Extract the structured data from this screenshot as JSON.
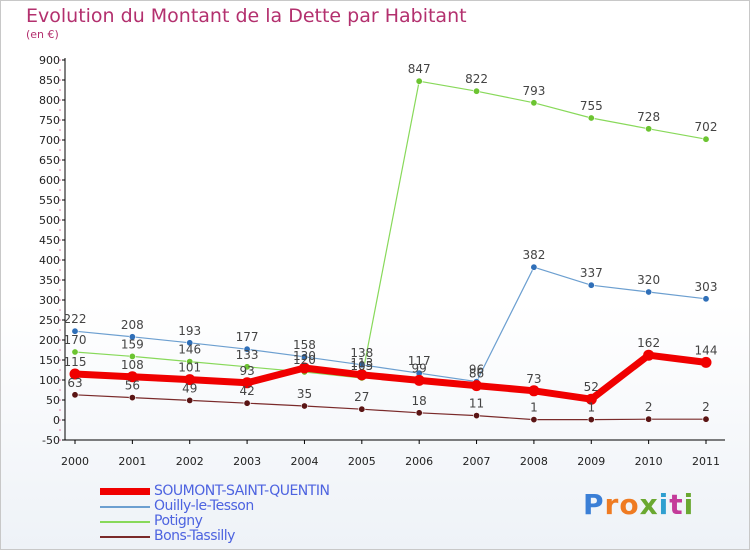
{
  "header": {
    "title": "Evolution du Montant de la Dette par Habitant",
    "subtitle": "(en €)"
  },
  "logo": {
    "letters": [
      "P",
      "r",
      "o",
      "x",
      "i",
      "t",
      "i"
    ],
    "colors": [
      "#3b7fd6",
      "#ef7b22",
      "#ef7b22",
      "#6aa831",
      "#2f9fd0",
      "#c43b9a",
      "#6aa831"
    ]
  },
  "chart_data": {
    "type": "line",
    "title": "Evolution du Montant de la Dette par Habitant",
    "ylabel": "(en €)",
    "xlabel": "",
    "ylim": [
      -50,
      900
    ],
    "y_ticks": [
      -50,
      0,
      50,
      100,
      150,
      200,
      250,
      300,
      350,
      400,
      450,
      500,
      550,
      600,
      650,
      700,
      750,
      800,
      850,
      900
    ],
    "grid": false,
    "legend_position": "bottom-left",
    "x": [
      "2000",
      "2001",
      "2002",
      "2003",
      "2004",
      "2005",
      "2006",
      "2007",
      "2008",
      "2009",
      "2010",
      "2011"
    ],
    "series": [
      {
        "name": "Potigny",
        "color": "#88d95a",
        "marker": "#6cc431",
        "width": 1.2,
        "values": [
          170,
          159,
          146,
          133,
          120,
          105,
          847,
          822,
          793,
          755,
          728,
          702
        ],
        "labels": [
          "170",
          "159",
          "146",
          "133",
          "120",
          "105",
          "847",
          "822",
          "793",
          "755",
          "728",
          "702"
        ]
      },
      {
        "name": "Ouilly-le-Tesson",
        "color": "#6c9fd0",
        "marker": "#2f6fb8",
        "width": 1.2,
        "values": [
          222,
          208,
          193,
          177,
          158,
          138,
          117,
          96,
          382,
          337,
          320,
          303
        ],
        "labels": [
          "222",
          "208",
          "193",
          "177",
          "158",
          "138",
          "117",
          "96",
          "382",
          "337",
          "320",
          "303"
        ]
      },
      {
        "name": "Bons-Tassilly",
        "color": "#7a2a2a",
        "marker": "#5a1414",
        "width": 1.2,
        "values": [
          63,
          56,
          49,
          42,
          35,
          27,
          18,
          11,
          1,
          1,
          2,
          2
        ],
        "labels": [
          "63",
          "56",
          "49",
          "42",
          "35",
          "27",
          "18",
          "11",
          "1",
          "1",
          "2",
          "2"
        ]
      },
      {
        "name": "SOUMONT-SAINT-QUENTIN",
        "color": "#f00000",
        "marker": "#f00000",
        "width": 7,
        "values": [
          115,
          108,
          101,
          93,
          130,
          113,
          99,
          86,
          73,
          52,
          162,
          144
        ],
        "labels": [
          "115",
          "108",
          "101",
          "93",
          "130",
          "113",
          "99",
          "86",
          "73",
          "52",
          "162",
          "144"
        ]
      }
    ]
  },
  "legend": [
    {
      "name": "SOUMONT-SAINT-QUENTIN",
      "color": "#f00000",
      "thickness": 7
    },
    {
      "name": "Ouilly-le-Tesson",
      "color": "#6c9fd0",
      "thickness": 2
    },
    {
      "name": "Potigny",
      "color": "#88d95a",
      "thickness": 2
    },
    {
      "name": "Bons-Tassilly",
      "color": "#7a2a2a",
      "thickness": 2
    }
  ]
}
